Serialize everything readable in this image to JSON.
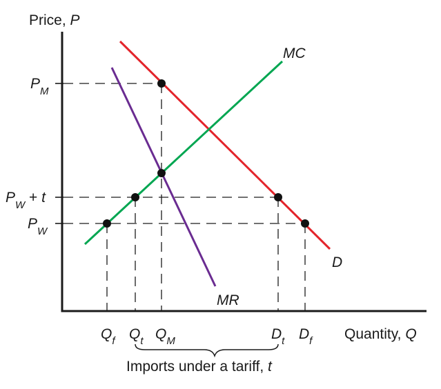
{
  "axes": {
    "y_label": "Price, ",
    "y_symbol": "P",
    "x_label": "Quantity, ",
    "x_symbol": "Q"
  },
  "curves": {
    "mc": {
      "label": "MC",
      "color": "#00a651"
    },
    "demand": {
      "label": "D",
      "color": "#e3242b"
    },
    "mr": {
      "label": "MR",
      "color": "#6a2c91"
    }
  },
  "price_levels": {
    "pm": {
      "main": "P",
      "sub": "M"
    },
    "pwt": {
      "main": "P",
      "sub": "W",
      "rest": " + ",
      "t": "t"
    },
    "pw": {
      "main": "P",
      "sub": "W"
    }
  },
  "quantity_levels": {
    "qf": {
      "main": "Q",
      "sub": "f"
    },
    "qt": {
      "main": "Q",
      "sub": "t"
    },
    "qm": {
      "main": "Q",
      "sub": "M"
    },
    "dt": {
      "main": "D",
      "sub": "t"
    },
    "df": {
      "main": "D",
      "sub": "f"
    }
  },
  "annotation": {
    "text": "Imports under a tariff, ",
    "symbol": "t"
  }
}
